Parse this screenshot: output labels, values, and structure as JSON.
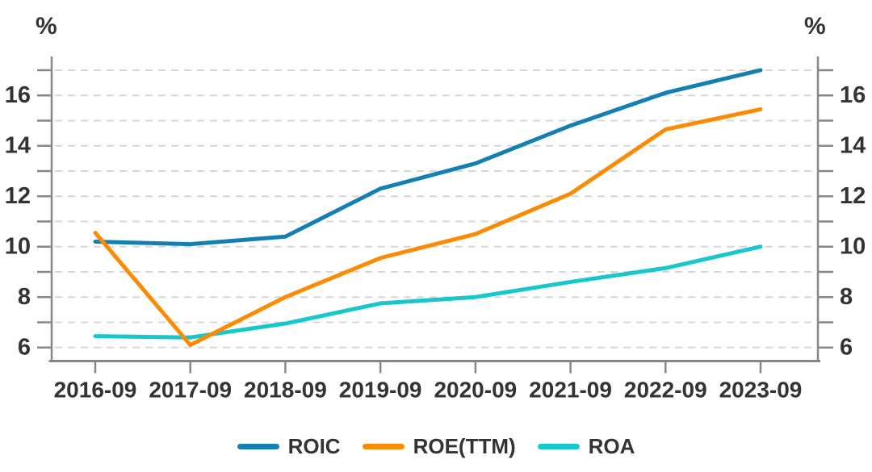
{
  "chart_data": {
    "type": "line",
    "unit_label": "%",
    "x_categories": [
      "2016-09",
      "2017-09",
      "2018-09",
      "2019-09",
      "2020-09",
      "2021-09",
      "2022-09",
      "2023-09"
    ],
    "series": [
      {
        "name": "ROIC",
        "color": "#1480b2",
        "values": [
          10.2,
          10.1,
          10.4,
          12.3,
          13.3,
          14.8,
          16.1,
          17.0
        ]
      },
      {
        "name": "ROE(TTM)",
        "color": "#fa8c05",
        "values": [
          10.55,
          6.1,
          8.0,
          9.55,
          10.5,
          12.1,
          14.65,
          15.45
        ]
      },
      {
        "name": "ROA",
        "color": "#17c7cb",
        "values": [
          6.45,
          6.4,
          6.95,
          7.75,
          8.0,
          8.6,
          9.15,
          10.0
        ]
      }
    ],
    "y_axis": {
      "min": 6,
      "max": 17,
      "labeled_ticks": [
        6,
        8,
        10,
        12,
        14,
        16
      ],
      "minor_tick_step": 1,
      "grid": "dashed",
      "mirrored_right_axis": true
    },
    "ylim": [
      6,
      17
    ],
    "title": "",
    "xlabel": "",
    "ylabel": "%",
    "legend_position": "bottom"
  },
  "colors": {
    "axis": "#878787",
    "grid": "#d7d7d7",
    "text": "#333333",
    "background": "#ffffff"
  }
}
